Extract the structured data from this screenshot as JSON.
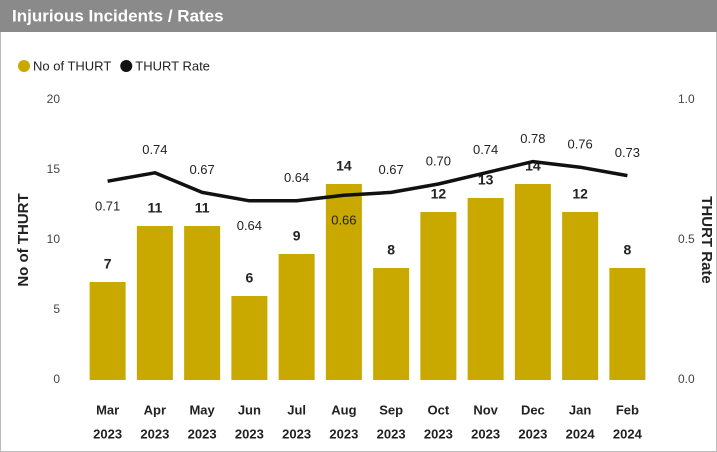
{
  "chart_data": {
    "type": "bar_line",
    "title": "Injurious Incidents / Rates",
    "y_label": "No of THURT",
    "y2_label": "THURT Rate",
    "categories": [
      [
        "Mar",
        "2023"
      ],
      [
        "Apr",
        "2023"
      ],
      [
        "May",
        "2023"
      ],
      [
        "Jun",
        "2023"
      ],
      [
        "Jul",
        "2023"
      ],
      [
        "Aug",
        "2023"
      ],
      [
        "Sep",
        "2023"
      ],
      [
        "Oct",
        "2023"
      ],
      [
        "Nov",
        "2023"
      ],
      [
        "Dec",
        "2023"
      ],
      [
        "Jan",
        "2024"
      ],
      [
        "Feb",
        "2024"
      ]
    ],
    "series": [
      {
        "name": "No of THURT",
        "kind": "bar",
        "color": "#c9a800",
        "values": [
          7,
          11,
          11,
          6,
          9,
          14,
          8,
          12,
          13,
          14,
          12,
          8
        ]
      },
      {
        "name": "THURT Rate",
        "kind": "line",
        "axis": "y2",
        "color": "#111111",
        "values": [
          0.71,
          0.74,
          0.67,
          0.64,
          0.64,
          0.66,
          0.67,
          0.7,
          0.74,
          0.78,
          0.76,
          0.73
        ],
        "value_labels": [
          "0.71",
          "0.74",
          "0.67",
          "0.64",
          "0.64",
          "0.66",
          "0.67",
          "0.70",
          "0.74",
          "0.78",
          "0.76",
          "0.73"
        ]
      }
    ],
    "ylim": [
      0,
      20
    ],
    "yticks": [
      0,
      5,
      10,
      15,
      20
    ],
    "y2lim": [
      0,
      1
    ],
    "y2ticks": [
      {
        "value": 0,
        "label": "0.0"
      },
      0.5,
      {
        "value": 1,
        "label": "1.0"
      }
    ],
    "legend": "top-left"
  }
}
